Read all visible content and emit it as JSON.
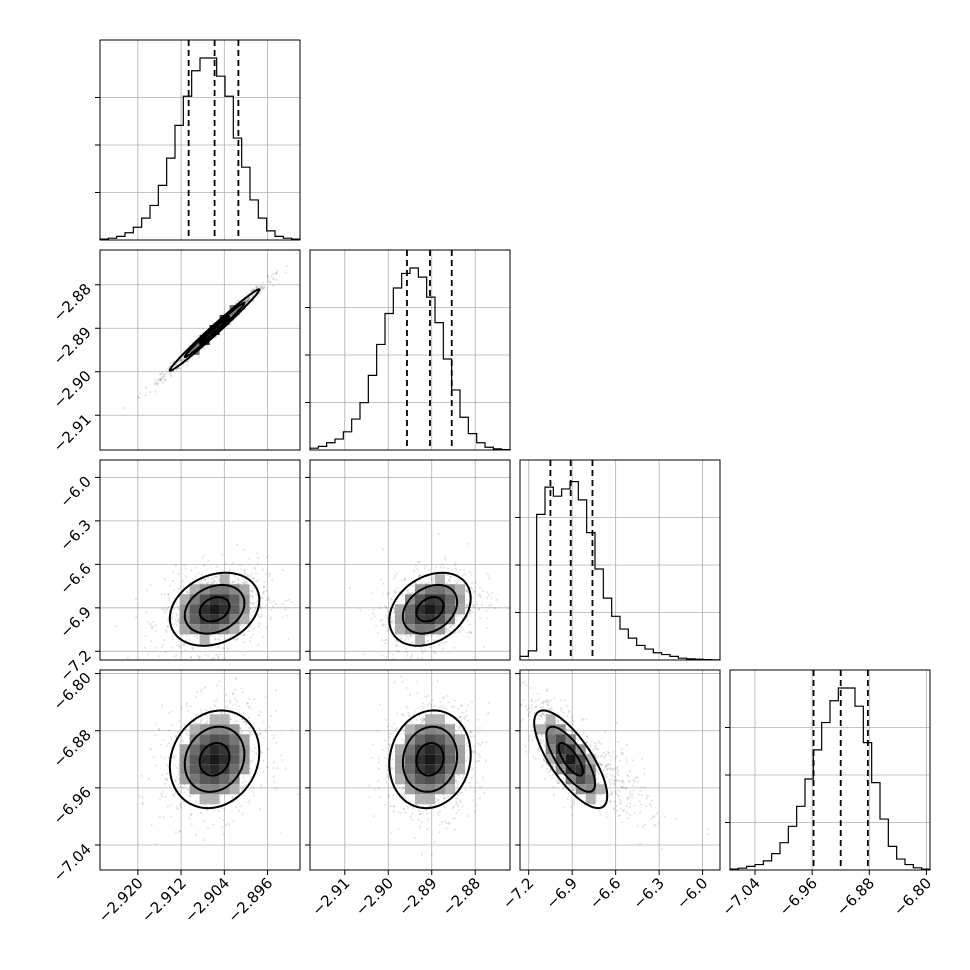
{
  "chart_data": {
    "type": "corner",
    "title": "",
    "grid": true,
    "parameters": [
      {
        "ticks": [
          -2.92,
          -2.912,
          -2.904,
          -2.896
        ],
        "tick_labels": [
          "−2.920",
          "−2.912",
          "−2.904",
          "−2.896"
        ],
        "range": [
          -2.927,
          -2.89
        ],
        "median": -2.9058,
        "q16": -2.9106,
        "q84": -2.9014,
        "sigma": 0.0046
      },
      {
        "ticks": [
          -2.91,
          -2.9,
          -2.89,
          -2.88
        ],
        "tick_labels": [
          "−2.91",
          "−2.90",
          "−2.89",
          "−2.88"
        ],
        "range": [
          -2.918,
          -2.872
        ],
        "median": -2.8904,
        "q16": -2.8957,
        "q84": -2.8854,
        "sigma": 0.0052
      },
      {
        "ticks": [
          -7.2,
          -6.9,
          -6.6,
          -6.3,
          -6.0
        ],
        "tick_labels": [
          "−7.2",
          "−6.9",
          "−6.6",
          "−6.3",
          "−6.0"
        ],
        "range": [
          -7.26,
          -5.88
        ],
        "median": -6.91,
        "q16": -7.05,
        "q84": -6.76,
        "sigma": 0.14
      },
      {
        "ticks": [
          -7.04,
          -6.96,
          -6.88,
          -6.8
        ],
        "tick_labels": [
          "−7.04",
          "−6.96",
          "−6.88",
          "−6.80"
        ],
        "range": [
          -7.075,
          -6.795
        ],
        "median": -6.92,
        "q16": -6.958,
        "q84": -6.882,
        "sigma": 0.038
      }
    ],
    "hist_1d": [
      [
        0.005,
        0.01,
        0.02,
        0.04,
        0.07,
        0.12,
        0.19,
        0.3,
        0.45,
        0.63,
        0.79,
        0.93,
        1.0,
        1.0,
        0.9,
        0.79,
        0.56,
        0.4,
        0.22,
        0.12,
        0.05,
        0.02,
        0.01,
        0.005
      ],
      [
        0.01,
        0.02,
        0.04,
        0.06,
        0.1,
        0.17,
        0.26,
        0.41,
        0.58,
        0.75,
        0.89,
        0.97,
        1.0,
        0.95,
        0.84,
        0.7,
        0.5,
        0.33,
        0.18,
        0.09,
        0.04,
        0.015,
        0.006,
        0.002
      ],
      [
        0.02,
        0.05,
        0.8,
        0.95,
        0.9,
        0.94,
        0.98,
        0.88,
        0.7,
        0.5,
        0.34,
        0.24,
        0.17,
        0.12,
        0.08,
        0.06,
        0.04,
        0.03,
        0.02,
        0.01,
        0.006,
        0.004,
        0.002,
        0.001
      ],
      [
        0.005,
        0.01,
        0.02,
        0.03,
        0.05,
        0.09,
        0.15,
        0.24,
        0.35,
        0.5,
        0.66,
        0.81,
        0.93,
        1.0,
        1.0,
        0.9,
        0.7,
        0.48,
        0.28,
        0.13,
        0.06,
        0.03,
        0.012,
        0.005
      ]
    ],
    "pairs": [
      {
        "row": 1,
        "col": 0,
        "correlation": 0.99
      },
      {
        "row": 2,
        "col": 0,
        "correlation": 0.25
      },
      {
        "row": 2,
        "col": 1,
        "correlation": 0.3
      },
      {
        "row": 3,
        "col": 0,
        "correlation": 0.15
      },
      {
        "row": 3,
        "col": 1,
        "correlation": 0.1
      },
      {
        "row": 3,
        "col": 2,
        "correlation": -0.75
      }
    ],
    "contour_levels_sigma": [
      0.5,
      1.0,
      1.5
    ]
  }
}
